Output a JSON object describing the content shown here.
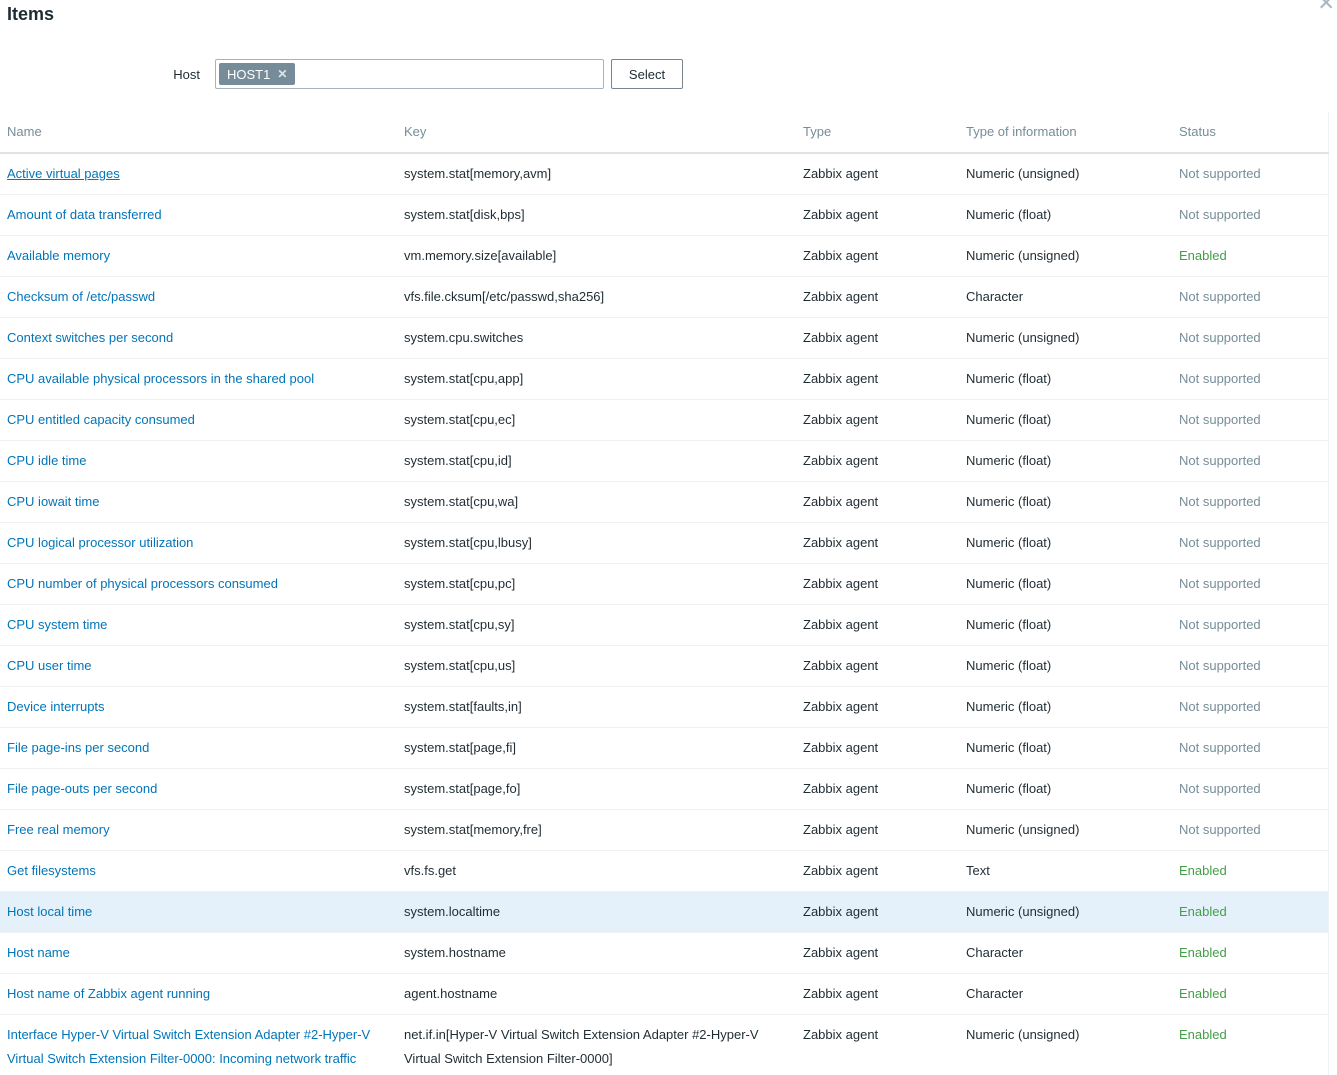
{
  "dialog": {
    "title": "Items",
    "close_icon": "✕"
  },
  "filter": {
    "host_label": "Host",
    "chips": [
      {
        "label": "HOST1",
        "remove_icon": "✕"
      }
    ],
    "select_button": "Select"
  },
  "colors": {
    "link_blue": "#0275b8",
    "enabled_green": "#429e47",
    "not_supported_gray": "#768d99",
    "chip_background": "#768d99",
    "highlight_row": "#e4f1fb"
  },
  "table": {
    "columns": [
      "Name",
      "Key",
      "Type",
      "Type of information",
      "Status"
    ],
    "rows": [
      {
        "name": "Active virtual pages",
        "key": "system.stat[memory,avm]",
        "type": "Zabbix agent",
        "info": "Numeric (unsigned)",
        "status": "Not supported",
        "enabled": false,
        "underlined": true,
        "highlighted": false
      },
      {
        "name": "Amount of data transferred",
        "key": "system.stat[disk,bps]",
        "type": "Zabbix agent",
        "info": "Numeric (float)",
        "status": "Not supported",
        "enabled": false,
        "underlined": false,
        "highlighted": false
      },
      {
        "name": "Available memory",
        "key": "vm.memory.size[available]",
        "type": "Zabbix agent",
        "info": "Numeric (unsigned)",
        "status": "Enabled",
        "enabled": true,
        "underlined": false,
        "highlighted": false
      },
      {
        "name": "Checksum of /etc/passwd",
        "key": "vfs.file.cksum[/etc/passwd,sha256]",
        "type": "Zabbix agent",
        "info": "Character",
        "status": "Not supported",
        "enabled": false,
        "underlined": false,
        "highlighted": false
      },
      {
        "name": "Context switches per second",
        "key": "system.cpu.switches",
        "type": "Zabbix agent",
        "info": "Numeric (unsigned)",
        "status": "Not supported",
        "enabled": false,
        "underlined": false,
        "highlighted": false
      },
      {
        "name": "CPU available physical processors in the shared pool",
        "key": "system.stat[cpu,app]",
        "type": "Zabbix agent",
        "info": "Numeric (float)",
        "status": "Not supported",
        "enabled": false,
        "underlined": false,
        "highlighted": false
      },
      {
        "name": "CPU entitled capacity consumed",
        "key": "system.stat[cpu,ec]",
        "type": "Zabbix agent",
        "info": "Numeric (float)",
        "status": "Not supported",
        "enabled": false,
        "underlined": false,
        "highlighted": false
      },
      {
        "name": "CPU idle time",
        "key": "system.stat[cpu,id]",
        "type": "Zabbix agent",
        "info": "Numeric (float)",
        "status": "Not supported",
        "enabled": false,
        "underlined": false,
        "highlighted": false
      },
      {
        "name": "CPU iowait time",
        "key": "system.stat[cpu,wa]",
        "type": "Zabbix agent",
        "info": "Numeric (float)",
        "status": "Not supported",
        "enabled": false,
        "underlined": false,
        "highlighted": false
      },
      {
        "name": "CPU logical processor utilization",
        "key": "system.stat[cpu,lbusy]",
        "type": "Zabbix agent",
        "info": "Numeric (float)",
        "status": "Not supported",
        "enabled": false,
        "underlined": false,
        "highlighted": false
      },
      {
        "name": "CPU number of physical processors consumed",
        "key": "system.stat[cpu,pc]",
        "type": "Zabbix agent",
        "info": "Numeric (float)",
        "status": "Not supported",
        "enabled": false,
        "underlined": false,
        "highlighted": false
      },
      {
        "name": "CPU system time",
        "key": "system.stat[cpu,sy]",
        "type": "Zabbix agent",
        "info": "Numeric (float)",
        "status": "Not supported",
        "enabled": false,
        "underlined": false,
        "highlighted": false
      },
      {
        "name": "CPU user time",
        "key": "system.stat[cpu,us]",
        "type": "Zabbix agent",
        "info": "Numeric (float)",
        "status": "Not supported",
        "enabled": false,
        "underlined": false,
        "highlighted": false
      },
      {
        "name": "Device interrupts",
        "key": "system.stat[faults,in]",
        "type": "Zabbix agent",
        "info": "Numeric (float)",
        "status": "Not supported",
        "enabled": false,
        "underlined": false,
        "highlighted": false
      },
      {
        "name": "File page-ins per second",
        "key": "system.stat[page,fi]",
        "type": "Zabbix agent",
        "info": "Numeric (float)",
        "status": "Not supported",
        "enabled": false,
        "underlined": false,
        "highlighted": false
      },
      {
        "name": "File page-outs per second",
        "key": "system.stat[page,fo]",
        "type": "Zabbix agent",
        "info": "Numeric (float)",
        "status": "Not supported",
        "enabled": false,
        "underlined": false,
        "highlighted": false
      },
      {
        "name": "Free real memory",
        "key": "system.stat[memory,fre]",
        "type": "Zabbix agent",
        "info": "Numeric (unsigned)",
        "status": "Not supported",
        "enabled": false,
        "underlined": false,
        "highlighted": false
      },
      {
        "name": "Get filesystems",
        "key": "vfs.fs.get",
        "type": "Zabbix agent",
        "info": "Text",
        "status": "Enabled",
        "enabled": true,
        "underlined": false,
        "highlighted": false
      },
      {
        "name": "Host local time",
        "key": "system.localtime",
        "type": "Zabbix agent",
        "info": "Numeric (unsigned)",
        "status": "Enabled",
        "enabled": true,
        "underlined": false,
        "highlighted": true
      },
      {
        "name": "Host name",
        "key": "system.hostname",
        "type": "Zabbix agent",
        "info": "Character",
        "status": "Enabled",
        "enabled": true,
        "underlined": false,
        "highlighted": false
      },
      {
        "name": "Host name of Zabbix agent running",
        "key": "agent.hostname",
        "type": "Zabbix agent",
        "info": "Character",
        "status": "Enabled",
        "enabled": true,
        "underlined": false,
        "highlighted": false
      },
      {
        "name": "Interface Hyper-V Virtual Switch Extension Adapter #2-Hyper-V Virtual Switch Extension Filter-0000: Incoming network traffic",
        "key": "net.if.in[Hyper-V Virtual Switch Extension Adapter #2-Hyper-V Virtual Switch Extension Filter-0000]",
        "type": "Zabbix agent",
        "info": "Numeric (unsigned)",
        "status": "Enabled",
        "enabled": true,
        "underlined": false,
        "highlighted": false
      }
    ]
  }
}
